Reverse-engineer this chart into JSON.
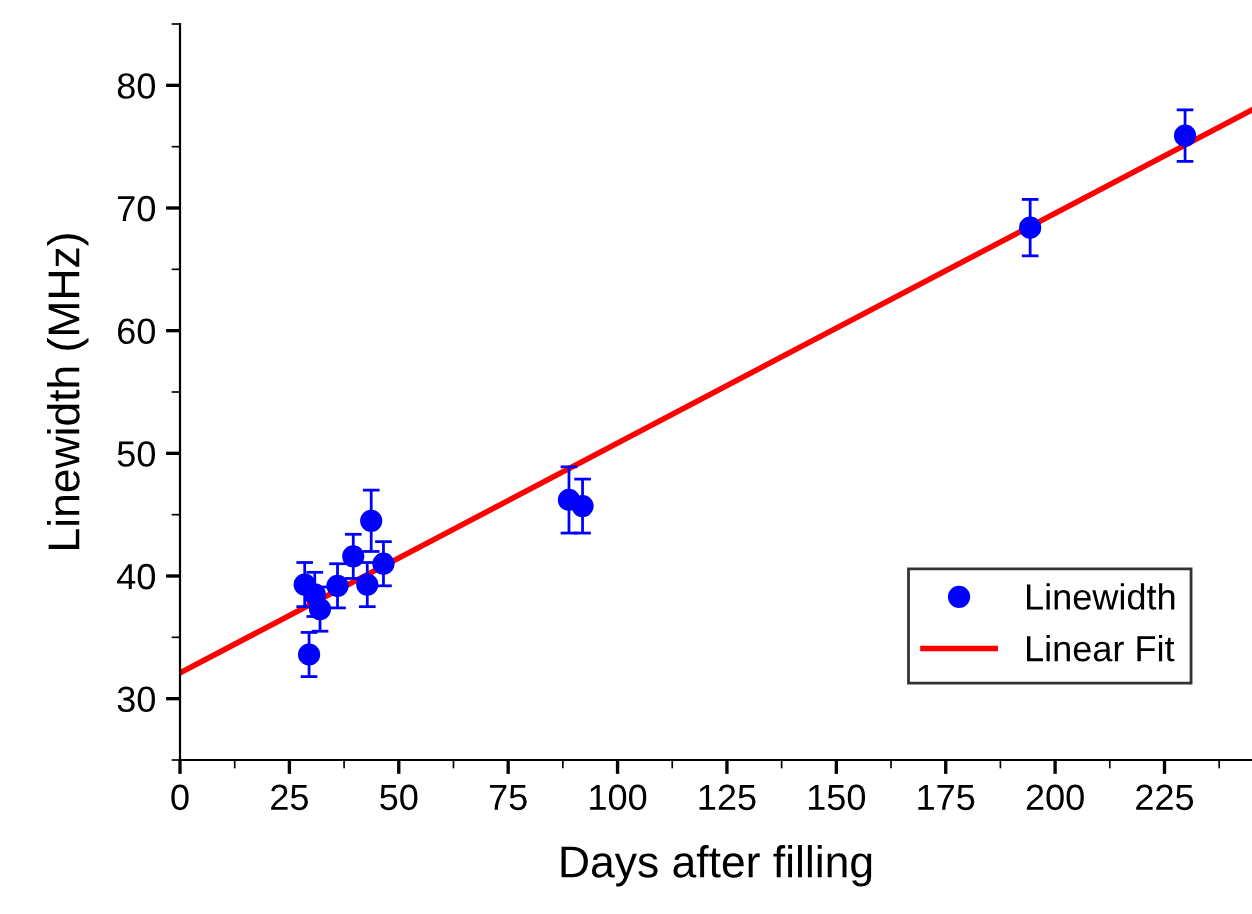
{
  "chart_data": {
    "type": "scatter",
    "xlabel": "Days after filling",
    "ylabel": "Linewidth (MHz)",
    "xlim": [
      0,
      245
    ],
    "xticks": [
      0,
      25,
      50,
      75,
      100,
      125,
      150,
      175,
      200,
      225
    ],
    "ylim": [
      25,
      85
    ],
    "yticks": [
      30,
      40,
      50,
      60,
      70,
      80
    ],
    "legend": "bottom right",
    "grid": false,
    "series": [
      {
        "name": "Linewidth",
        "color": "#0000ff",
        "marker": "circle",
        "x": [
          28.5,
          29.5,
          30.8,
          32,
          36,
          39.6,
          42.8,
          43.7,
          46.5,
          88.9,
          92,
          194.3,
          229.7
        ],
        "values": [
          39.3,
          33.6,
          38.5,
          37.3,
          39.2,
          41.6,
          39.3,
          44.5,
          41.0,
          46.2,
          45.7,
          68.4,
          75.9
        ],
        "errors": [
          1.8,
          1.8,
          1.8,
          1.8,
          1.8,
          1.8,
          1.8,
          2.5,
          1.8,
          2.7,
          2.2,
          2.3,
          2.1
        ]
      },
      {
        "name": "Linear Fit",
        "type": "line",
        "color": "#ff0000",
        "x": [
          0,
          245
        ],
        "values": [
          32.1,
          78.0
        ]
      }
    ]
  }
}
